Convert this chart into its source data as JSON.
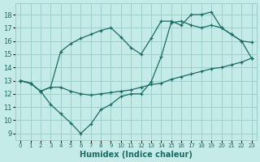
{
  "bg_color": "#c5ebe8",
  "grid_color": "#9ecfcc",
  "line_color": "#1a6b65",
  "xlim": [
    -0.5,
    23.5
  ],
  "ylim": [
    8.5,
    18.85
  ],
  "xticks": [
    0,
    1,
    2,
    3,
    4,
    5,
    6,
    7,
    8,
    9,
    10,
    11,
    12,
    13,
    14,
    15,
    16,
    17,
    18,
    19,
    20,
    21,
    22,
    23
  ],
  "yticks": [
    9,
    10,
    11,
    12,
    13,
    14,
    15,
    16,
    17,
    18
  ],
  "xlabel": "Humidex (Indice chaleur)",
  "line1_x": [
    0,
    1,
    2,
    3,
    4,
    5,
    6,
    7,
    8,
    9,
    10,
    11,
    12,
    13,
    14,
    15,
    16,
    17,
    18,
    19,
    20,
    21,
    22,
    23
  ],
  "line1_y": [
    13.0,
    12.8,
    12.2,
    12.5,
    12.5,
    12.2,
    12.0,
    11.9,
    12.0,
    12.1,
    12.2,
    12.3,
    12.5,
    12.7,
    12.8,
    13.1,
    13.3,
    13.5,
    13.7,
    13.9,
    14.0,
    14.2,
    14.4,
    14.7
  ],
  "line2_x": [
    0,
    1,
    2,
    3,
    4,
    5,
    6,
    7,
    8,
    9,
    10,
    11,
    12,
    13,
    14,
    15,
    16,
    17,
    18,
    19,
    20,
    21,
    22,
    23
  ],
  "line2_y": [
    13.0,
    12.8,
    12.2,
    11.2,
    10.5,
    9.8,
    9.0,
    9.7,
    10.8,
    11.2,
    11.8,
    12.0,
    12.0,
    12.9,
    14.8,
    17.4,
    17.5,
    17.2,
    17.0,
    17.2,
    17.0,
    16.5,
    16.0,
    15.9
  ],
  "line3_x": [
    0,
    1,
    2,
    3,
    4,
    5,
    6,
    7,
    8,
    9,
    10,
    11,
    12,
    13,
    14,
    15,
    16,
    17,
    18,
    19,
    20,
    21,
    22,
    23
  ],
  "line3_y": [
    13.0,
    12.8,
    12.2,
    12.5,
    15.2,
    15.8,
    16.2,
    16.5,
    16.8,
    17.0,
    16.3,
    15.5,
    15.0,
    16.2,
    17.5,
    17.5,
    17.2,
    18.0,
    18.0,
    18.2,
    17.0,
    16.5,
    16.0,
    14.7
  ]
}
